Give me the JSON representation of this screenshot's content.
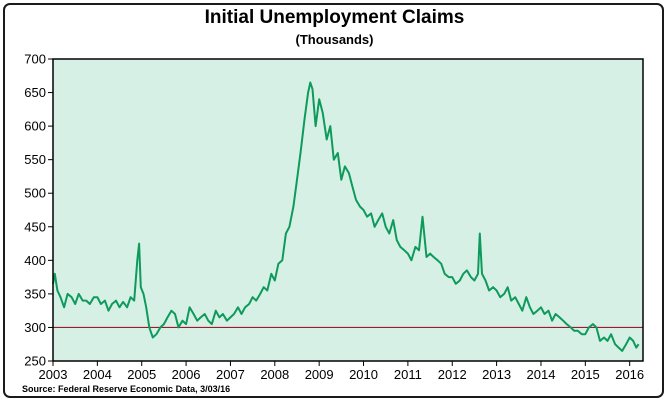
{
  "chart_data": {
    "type": "line",
    "title": "Initial Unemployment Claims",
    "subtitle": "(Thousands)",
    "source": "Source:  Federal Reserve Economic Data, 3/03/16",
    "xlabel": "",
    "ylabel": "",
    "xlim": [
      2003.0,
      2016.3
    ],
    "ylim": [
      250,
      700
    ],
    "x_ticks": [
      "2003",
      "2004",
      "2005",
      "2006",
      "2007",
      "2008",
      "2009",
      "2010",
      "2011",
      "2012",
      "2013",
      "2014",
      "2015",
      "2016"
    ],
    "y_ticks": [
      250,
      300,
      350,
      400,
      450,
      500,
      550,
      600,
      650,
      700
    ],
    "grid": false,
    "plot_background": "#d6f0e6",
    "line_color": "#0e9a5b",
    "reference_line": {
      "y": 300,
      "color": "#9c1b2e"
    },
    "series": [
      {
        "x": [
          2003.0,
          2003.04,
          2003.1,
          2003.17,
          2003.25,
          2003.33,
          2003.42,
          2003.5,
          2003.58,
          2003.67,
          2003.75,
          2003.83,
          2003.92,
          2004.0,
          2004.08,
          2004.17,
          2004.25,
          2004.33,
          2004.42,
          2004.5,
          2004.58,
          2004.67,
          2004.75,
          2004.83,
          2004.9,
          2004.94,
          2004.98,
          2005.04,
          2005.1,
          2005.17,
          2005.25,
          2005.33,
          2005.42,
          2005.5,
          2005.58,
          2005.67,
          2005.75,
          2005.83,
          2005.92,
          2006.0,
          2006.08,
          2006.17,
          2006.25,
          2006.33,
          2006.42,
          2006.5,
          2006.58,
          2006.67,
          2006.75,
          2006.83,
          2006.92,
          2007.0,
          2007.08,
          2007.17,
          2007.25,
          2007.33,
          2007.42,
          2007.5,
          2007.58,
          2007.67,
          2007.75,
          2007.83,
          2007.92,
          2008.0,
          2008.08,
          2008.17,
          2008.25,
          2008.33,
          2008.42,
          2008.5,
          2008.58,
          2008.67,
          2008.75,
          2008.8,
          2008.85,
          2008.92,
          2009.0,
          2009.08,
          2009.17,
          2009.25,
          2009.33,
          2009.42,
          2009.5,
          2009.58,
          2009.67,
          2009.75,
          2009.83,
          2009.92,
          2010.0,
          2010.08,
          2010.17,
          2010.25,
          2010.33,
          2010.42,
          2010.5,
          2010.58,
          2010.67,
          2010.75,
          2010.83,
          2010.92,
          2011.0,
          2011.08,
          2011.17,
          2011.25,
          2011.33,
          2011.42,
          2011.5,
          2011.58,
          2011.67,
          2011.75,
          2011.83,
          2011.92,
          2012.0,
          2012.08,
          2012.17,
          2012.25,
          2012.33,
          2012.42,
          2012.5,
          2012.58,
          2012.62,
          2012.67,
          2012.75,
          2012.83,
          2012.92,
          2013.0,
          2013.08,
          2013.17,
          2013.25,
          2013.33,
          2013.42,
          2013.5,
          2013.58,
          2013.67,
          2013.75,
          2013.83,
          2013.92,
          2014.0,
          2014.08,
          2014.17,
          2014.25,
          2014.33,
          2014.42,
          2014.5,
          2014.58,
          2014.67,
          2014.75,
          2014.83,
          2014.92,
          2015.0,
          2015.08,
          2015.17,
          2015.25,
          2015.33,
          2015.42,
          2015.5,
          2015.58,
          2015.67,
          2015.75,
          2015.83,
          2015.92,
          2016.0,
          2016.08,
          2016.15,
          2016.2
        ],
        "y": [
          365,
          380,
          355,
          345,
          330,
          350,
          345,
          335,
          350,
          340,
          340,
          335,
          345,
          345,
          335,
          340,
          325,
          335,
          340,
          330,
          338,
          330,
          345,
          340,
          400,
          425,
          360,
          350,
          330,
          300,
          285,
          290,
          300,
          305,
          315,
          325,
          320,
          300,
          310,
          305,
          330,
          320,
          310,
          315,
          320,
          310,
          305,
          325,
          315,
          320,
          310,
          315,
          320,
          330,
          320,
          330,
          335,
          345,
          340,
          350,
          360,
          355,
          380,
          370,
          395,
          400,
          440,
          450,
          480,
          520,
          560,
          610,
          650,
          665,
          655,
          600,
          640,
          620,
          580,
          600,
          550,
          560,
          520,
          540,
          530,
          510,
          490,
          480,
          475,
          465,
          470,
          450,
          460,
          470,
          450,
          440,
          460,
          430,
          420,
          415,
          410,
          400,
          420,
          415,
          465,
          405,
          410,
          405,
          400,
          395,
          380,
          375,
          375,
          365,
          370,
          380,
          385,
          375,
          370,
          380,
          440,
          380,
          370,
          355,
          360,
          355,
          345,
          350,
          360,
          340,
          345,
          335,
          325,
          345,
          330,
          320,
          325,
          330,
          320,
          325,
          310,
          320,
          315,
          310,
          305,
          300,
          295,
          295,
          290,
          290,
          300,
          305,
          300,
          280,
          285,
          280,
          290,
          275,
          270,
          265,
          275,
          285,
          280,
          270,
          275
        ]
      }
    ]
  }
}
